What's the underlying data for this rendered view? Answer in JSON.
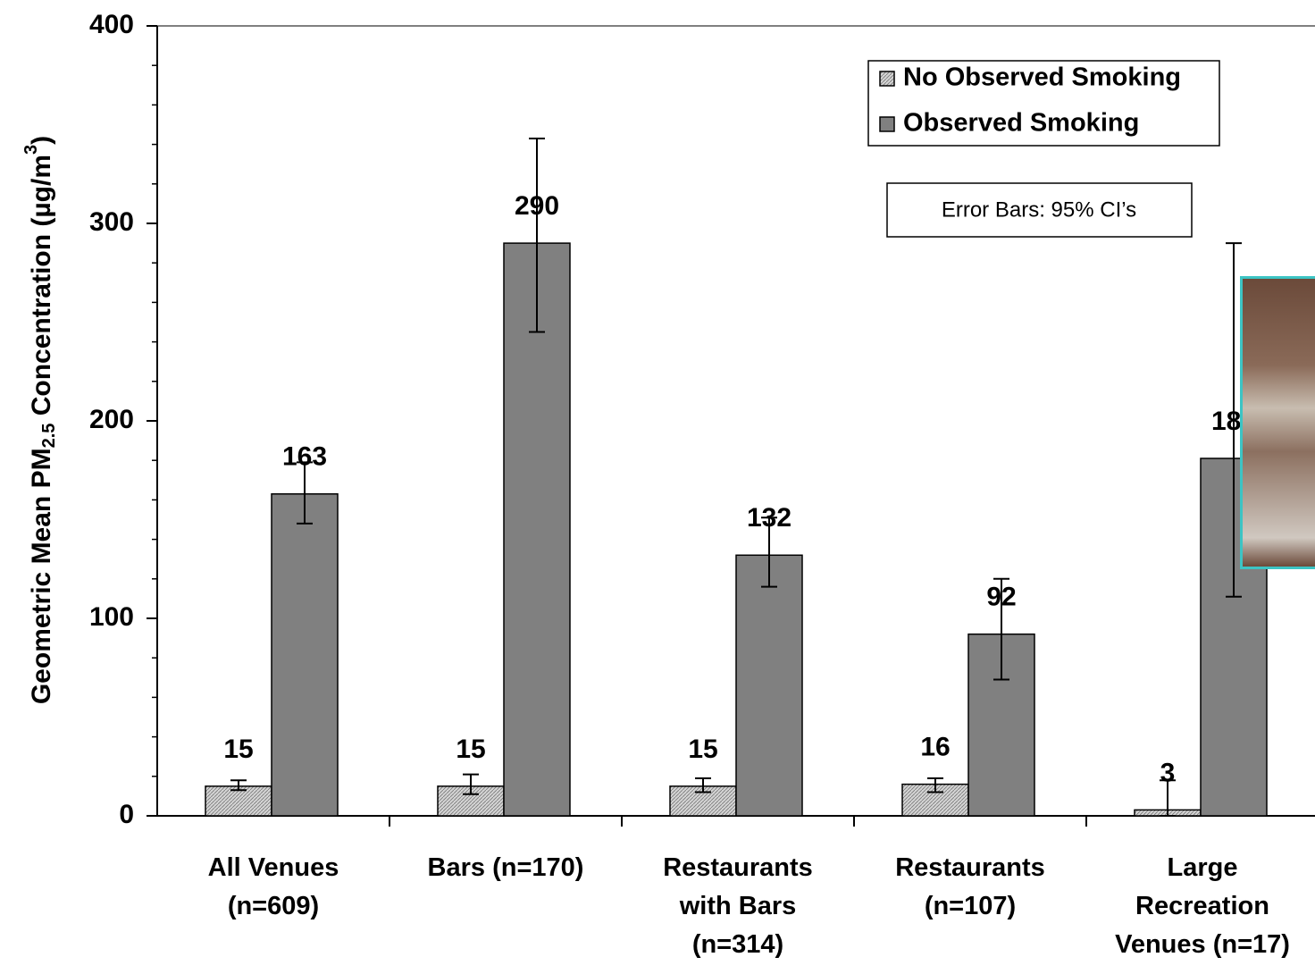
{
  "chart_data": {
    "type": "bar",
    "ylabel": [
      "Geometric Mean PM",
      "2.5",
      " Concentration (µg/m",
      "3",
      ")"
    ],
    "categories": [
      "All Venues\n(n=609)",
      "Bars (n=170)",
      "Restaurants\nwith Bars\n(n=314)",
      "Restaurants\n(n=107)",
      "Large\nRecreation\nVenues (n=17)"
    ],
    "series": [
      {
        "name": "No Observed Smoking",
        "color": "#d4d4d4",
        "values": [
          15,
          15,
          15,
          16,
          3
        ],
        "ci_lower": [
          13,
          11,
          12,
          12,
          0
        ],
        "ci_upper": [
          18,
          21,
          19,
          19,
          18
        ]
      },
      {
        "name": "Observed Smoking",
        "color": "#808080",
        "values": [
          163,
          290,
          132,
          92,
          181
        ],
        "ci_lower": [
          148,
          245,
          116,
          69,
          111
        ],
        "ci_upper": [
          179,
          343,
          151,
          120,
          290
        ]
      }
    ],
    "note": "Error Bars: 95% CI’s",
    "ylim": [
      0,
      400
    ],
    "yticks": [
      0,
      100,
      200,
      300,
      400
    ],
    "yminorticks": [
      20,
      40,
      60,
      80,
      120,
      140,
      160,
      180,
      220,
      240,
      260,
      280,
      320,
      340,
      360,
      380
    ],
    "legend": "top-right"
  }
}
